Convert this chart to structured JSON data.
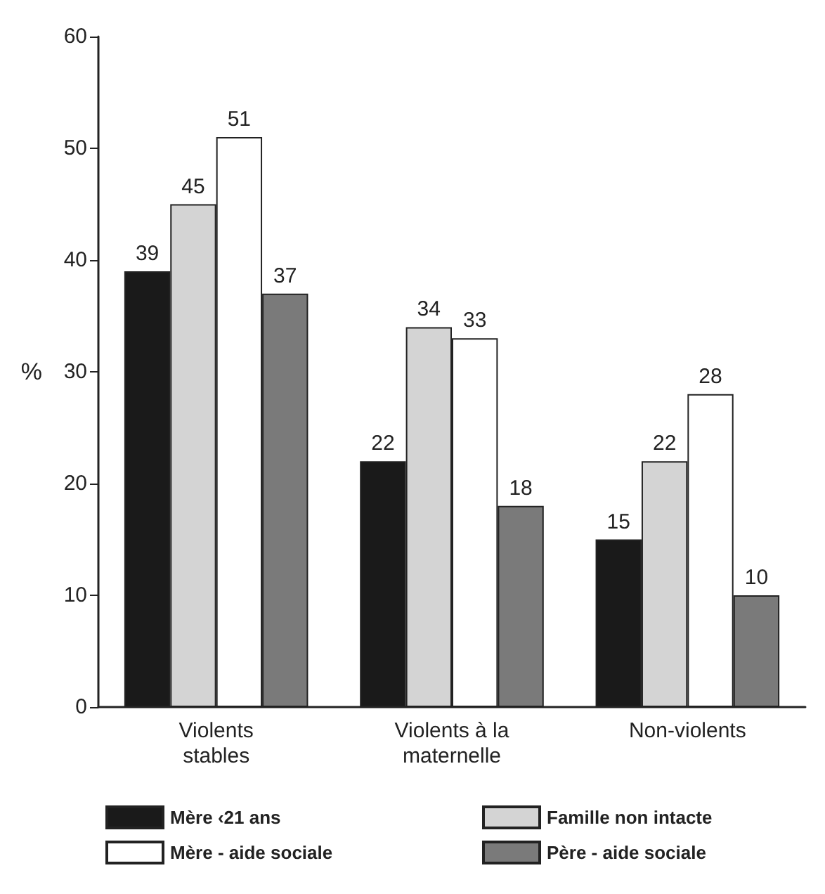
{
  "chart_data": {
    "type": "bar",
    "ylabel": "%",
    "categories": [
      "Violents\nstables",
      "Violents à la\nmaternelle",
      "Non-violents"
    ],
    "series": [
      {
        "name": "Mère ‹21 ans",
        "color": "#1a1a1a",
        "values": [
          39,
          22,
          15
        ]
      },
      {
        "name": "Famille non intacte",
        "color": "#d4d4d4",
        "values": [
          45,
          34,
          22
        ]
      },
      {
        "name": "Mère - aide sociale",
        "color": "#ffffff",
        "values": [
          51,
          33,
          28
        ]
      },
      {
        "name": "Père - aide sociale",
        "color": "#7a7a7a",
        "values": [
          37,
          18,
          10
        ]
      }
    ],
    "ylim": [
      0,
      60
    ],
    "yticks": [
      0,
      10,
      20,
      30,
      40,
      50,
      60
    ],
    "grid": false,
    "legend": "bottom",
    "data_labels": true
  }
}
